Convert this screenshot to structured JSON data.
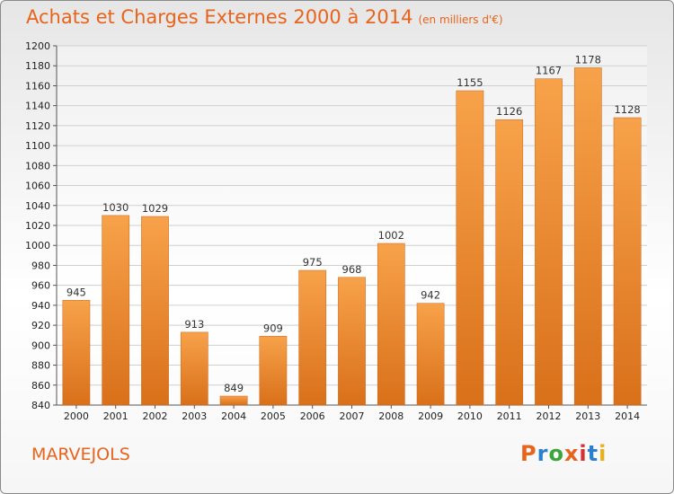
{
  "chart_data": {
    "type": "bar",
    "title": "Achats et Charges Externes 2000 à 2014",
    "subtitle": "(en milliers d'€)",
    "categories": [
      "2000",
      "2001",
      "2002",
      "2003",
      "2004",
      "2005",
      "2006",
      "2007",
      "2008",
      "2009",
      "2010",
      "2011",
      "2012",
      "2013",
      "2014"
    ],
    "values": [
      945,
      1030,
      1029,
      913,
      849,
      909,
      975,
      968,
      1002,
      942,
      1155,
      1126,
      1167,
      1178,
      1128
    ],
    "ylim": [
      840,
      1200
    ],
    "yticks": [
      840,
      860,
      880,
      900,
      920,
      940,
      960,
      980,
      1000,
      1020,
      1040,
      1060,
      1080,
      1100,
      1120,
      1140,
      1160,
      1180,
      1200
    ],
    "grid": true,
    "bar_color": "#f0902e"
  },
  "footer": {
    "city": "MARVEJOLS",
    "logo": [
      "P",
      "r",
      "o",
      "x",
      "i",
      "t",
      "i"
    ],
    "logo_colors": [
      "#e8631c",
      "#2a7fd0",
      "#3aa63a",
      "#e8631c",
      "#d83030",
      "#2a7fd0",
      "#e8b020"
    ]
  }
}
